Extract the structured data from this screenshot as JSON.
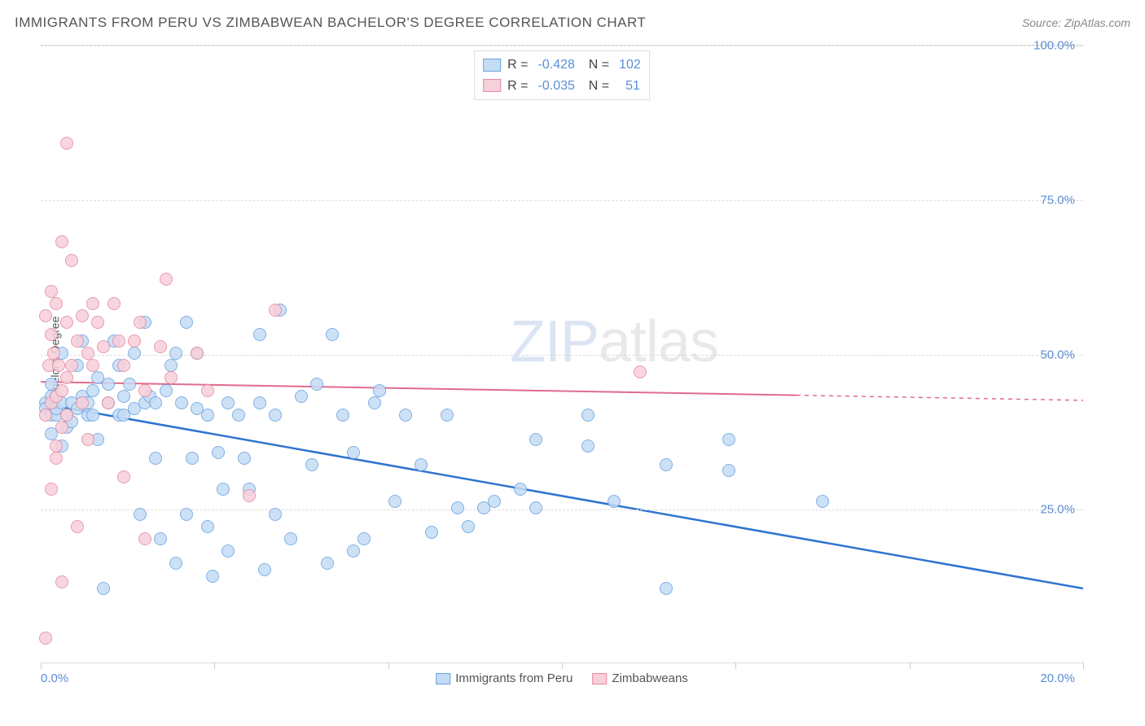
{
  "header": {
    "title": "IMMIGRANTS FROM PERU VS ZIMBABWEAN BACHELOR'S DEGREE CORRELATION CHART",
    "source": "Source: ZipAtlas.com"
  },
  "watermark": {
    "part1": "ZIP",
    "part2": "atlas"
  },
  "chart": {
    "type": "scatter",
    "y_axis_title": "Bachelor's Degree",
    "xlim": [
      0,
      20
    ],
    "ylim": [
      0,
      100
    ],
    "x_tick_labels": [
      "0.0%",
      "20.0%"
    ],
    "x_minor_tick_positions": [
      0,
      3.33,
      6.67,
      10,
      13.33,
      16.67,
      20
    ],
    "y_ticks": [
      25,
      50,
      75,
      100
    ],
    "y_tick_labels": [
      "25.0%",
      "50.0%",
      "75.0%",
      "100.0%"
    ],
    "grid_color": "#dddddd",
    "background_color": "#ffffff",
    "tick_label_color": "#5b8dd6",
    "series": [
      {
        "name": "Immigrants from Peru",
        "marker_fill": "#c5dcf5",
        "marker_stroke": "#6aa3e0",
        "swatch_fill": "#c5dcf5",
        "swatch_stroke": "#6aa3e0",
        "trend_color": "#2f74d0",
        "trend_width": 2.5,
        "trend_dash_solid_end_x": 20,
        "R": "-0.428",
        "N": "102",
        "trend": {
          "x0": 0,
          "y0": 42,
          "x1": 20,
          "y1": 12
        },
        "points": [
          [
            0.1,
            42
          ],
          [
            0.1,
            41
          ],
          [
            0.2,
            40
          ],
          [
            0.2,
            43
          ],
          [
            0.2,
            45
          ],
          [
            0.2,
            37
          ],
          [
            0.3,
            40
          ],
          [
            0.3,
            43
          ],
          [
            0.3,
            41
          ],
          [
            0.4,
            42
          ],
          [
            0.4,
            35
          ],
          [
            0.4,
            50
          ],
          [
            0.5,
            40
          ],
          [
            0.5,
            38
          ],
          [
            0.6,
            42
          ],
          [
            0.6,
            39
          ],
          [
            0.7,
            41
          ],
          [
            0.7,
            48
          ],
          [
            0.8,
            43
          ],
          [
            0.8,
            52
          ],
          [
            0.9,
            42
          ],
          [
            0.9,
            40
          ],
          [
            1.0,
            40
          ],
          [
            1.0,
            44
          ],
          [
            1.1,
            36
          ],
          [
            1.1,
            46
          ],
          [
            1.2,
            12
          ],
          [
            1.3,
            42
          ],
          [
            1.3,
            45
          ],
          [
            1.4,
            52
          ],
          [
            1.5,
            40
          ],
          [
            1.5,
            48
          ],
          [
            1.6,
            40
          ],
          [
            1.6,
            43
          ],
          [
            1.7,
            45
          ],
          [
            1.8,
            50
          ],
          [
            1.8,
            41
          ],
          [
            1.9,
            24
          ],
          [
            2.0,
            42
          ],
          [
            2.0,
            55
          ],
          [
            2.1,
            43
          ],
          [
            2.2,
            33
          ],
          [
            2.2,
            42
          ],
          [
            2.3,
            20
          ],
          [
            2.4,
            44
          ],
          [
            2.5,
            48
          ],
          [
            2.6,
            50
          ],
          [
            2.6,
            16
          ],
          [
            2.7,
            42
          ],
          [
            2.8,
            24
          ],
          [
            2.8,
            55
          ],
          [
            2.9,
            33
          ],
          [
            3.0,
            41
          ],
          [
            3.0,
            50
          ],
          [
            3.2,
            40
          ],
          [
            3.2,
            22
          ],
          [
            3.3,
            14
          ],
          [
            3.4,
            34
          ],
          [
            3.5,
            28
          ],
          [
            3.6,
            42
          ],
          [
            3.6,
            18
          ],
          [
            3.8,
            40
          ],
          [
            3.9,
            33
          ],
          [
            4.0,
            28
          ],
          [
            4.2,
            42
          ],
          [
            4.2,
            53
          ],
          [
            4.3,
            15
          ],
          [
            4.5,
            40
          ],
          [
            4.5,
            24
          ],
          [
            4.6,
            57
          ],
          [
            4.8,
            20
          ],
          [
            5.0,
            43
          ],
          [
            5.2,
            32
          ],
          [
            5.3,
            45
          ],
          [
            5.5,
            16
          ],
          [
            5.6,
            53
          ],
          [
            5.8,
            40
          ],
          [
            6.0,
            18
          ],
          [
            6.0,
            34
          ],
          [
            6.2,
            20
          ],
          [
            6.4,
            42
          ],
          [
            6.5,
            44
          ],
          [
            6.8,
            26
          ],
          [
            7.0,
            40
          ],
          [
            7.3,
            32
          ],
          [
            7.5,
            21
          ],
          [
            7.8,
            40
          ],
          [
            8.0,
            25
          ],
          [
            8.2,
            22
          ],
          [
            8.5,
            25
          ],
          [
            8.7,
            26
          ],
          [
            9.2,
            28
          ],
          [
            9.5,
            25
          ],
          [
            9.5,
            36
          ],
          [
            10.5,
            35
          ],
          [
            10.5,
            40
          ],
          [
            11.0,
            26
          ],
          [
            12.0,
            12
          ],
          [
            12.0,
            32
          ],
          [
            13.2,
            36
          ],
          [
            13.2,
            31
          ],
          [
            15.0,
            26
          ]
        ]
      },
      {
        "name": "Zimbabweans",
        "marker_fill": "#f8d0da",
        "marker_stroke": "#e38aa2",
        "swatch_fill": "#f8d0da",
        "swatch_stroke": "#e38aa2",
        "trend_color": "#e06b8c",
        "trend_width": 2,
        "trend_dash_solid_end_x": 14.5,
        "R": "-0.035",
        "N": "51",
        "trend": {
          "x0": 0,
          "y0": 45.5,
          "x1": 20,
          "y1": 42.5
        },
        "points": [
          [
            0.1,
            4
          ],
          [
            0.1,
            40
          ],
          [
            0.1,
            56
          ],
          [
            0.15,
            48
          ],
          [
            0.2,
            42
          ],
          [
            0.2,
            60
          ],
          [
            0.2,
            53
          ],
          [
            0.2,
            28
          ],
          [
            0.25,
            50
          ],
          [
            0.3,
            43
          ],
          [
            0.3,
            35
          ],
          [
            0.3,
            58
          ],
          [
            0.3,
            33
          ],
          [
            0.35,
            48
          ],
          [
            0.4,
            44
          ],
          [
            0.4,
            68
          ],
          [
            0.4,
            38
          ],
          [
            0.4,
            13
          ],
          [
            0.5,
            46
          ],
          [
            0.5,
            55
          ],
          [
            0.5,
            84
          ],
          [
            0.5,
            40
          ],
          [
            0.6,
            48
          ],
          [
            0.6,
            65
          ],
          [
            0.7,
            52
          ],
          [
            0.7,
            22
          ],
          [
            0.8,
            42
          ],
          [
            0.8,
            56
          ],
          [
            0.9,
            50
          ],
          [
            0.9,
            36
          ],
          [
            1.0,
            48
          ],
          [
            1.0,
            58
          ],
          [
            1.1,
            55
          ],
          [
            1.2,
            51
          ],
          [
            1.3,
            42
          ],
          [
            1.4,
            58
          ],
          [
            1.5,
            52
          ],
          [
            1.6,
            48
          ],
          [
            1.6,
            30
          ],
          [
            1.8,
            52
          ],
          [
            1.9,
            55
          ],
          [
            2.0,
            44
          ],
          [
            2.0,
            20
          ],
          [
            2.3,
            51
          ],
          [
            2.4,
            62
          ],
          [
            2.5,
            46
          ],
          [
            3.0,
            50
          ],
          [
            3.2,
            44
          ],
          [
            4.0,
            27
          ],
          [
            4.5,
            57
          ],
          [
            11.5,
            47
          ]
        ]
      }
    ]
  },
  "legend_bottom": [
    {
      "label": "Immigrants from Peru",
      "fill": "#c5dcf5",
      "stroke": "#6aa3e0"
    },
    {
      "label": "Zimbabweans",
      "fill": "#f8d0da",
      "stroke": "#e38aa2"
    }
  ]
}
